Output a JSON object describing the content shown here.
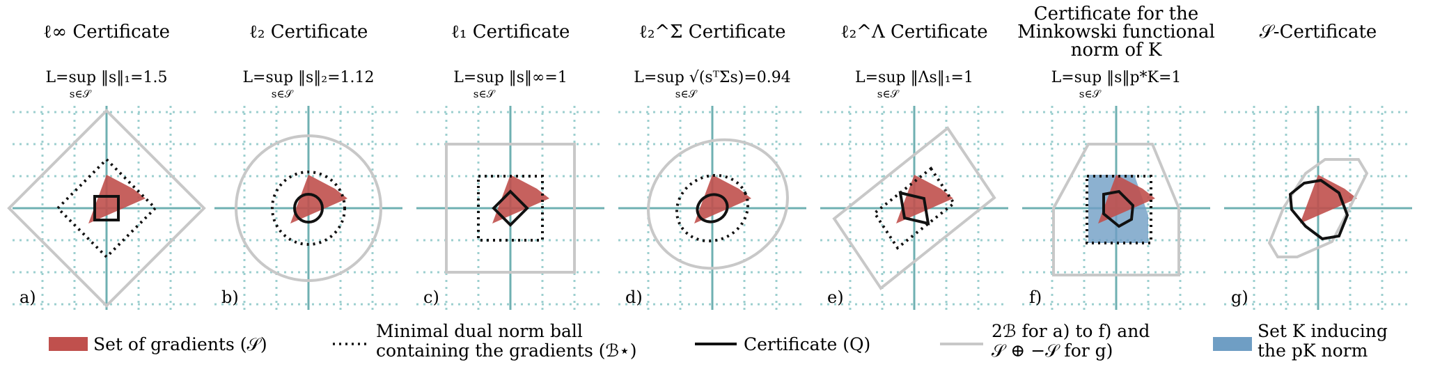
{
  "panels": [
    {
      "id": "a",
      "label": "a)",
      "title_lines": [
        "ℓ∞ Certificate"
      ],
      "formula_main": "L=sup ‖s‖₁=1.5",
      "formula_sub": "s∈𝒮"
    },
    {
      "id": "b",
      "label": "b)",
      "title_lines": [
        "ℓ₂ Certificate"
      ],
      "formula_main": "L=sup ‖s‖₂=1.12",
      "formula_sub": "s∈𝒮"
    },
    {
      "id": "c",
      "label": "c)",
      "title_lines": [
        "ℓ₁ Certificate"
      ],
      "formula_main": "L=sup ‖s‖∞=1",
      "formula_sub": "s∈𝒮"
    },
    {
      "id": "d",
      "label": "d)",
      "title_lines": [
        "ℓ₂^Σ Certificate"
      ],
      "formula_main": "L=sup √(sᵀΣs)=0.94",
      "formula_sub": "s∈𝒮"
    },
    {
      "id": "e",
      "label": "e)",
      "title_lines": [
        "ℓ₂^Λ Certificate"
      ],
      "formula_main": "L=sup ‖Λs‖₁=1",
      "formula_sub": "s∈𝒮"
    },
    {
      "id": "f",
      "label": "f)",
      "title_lines": [
        "Certificate for the",
        "Minkowski functional",
        "norm of K"
      ],
      "formula_main": "L=sup ‖s‖p*K=1",
      "formula_sub": "s∈𝒮"
    },
    {
      "id": "g",
      "label": "g)",
      "title_lines": [
        "𝒮-Certificate"
      ],
      "formula_main": "",
      "formula_sub": ""
    }
  ],
  "legend": {
    "gradients": "Set of gradients (𝒮)",
    "dual_ball_line1": "Minimal dual norm ball",
    "dual_ball_line2": "containing the gradients (ℬ⋆)",
    "certificate": "Certificate (Q)",
    "ball_line1": "2ℬ for a) to f) and",
    "ball_line2": "𝒮 ⊕ −𝒮 for g)",
    "setk_line1": "Set K inducing",
    "setk_line2": "the pK norm"
  },
  "colors": {
    "gradient_fill": "#c0504d",
    "set_k_fill": "#6f9ec4",
    "axis": "#6fb0b2",
    "grid": "#9ccfcf",
    "ball_stroke": "#c8c8c8",
    "certificate": "#111111"
  }
}
